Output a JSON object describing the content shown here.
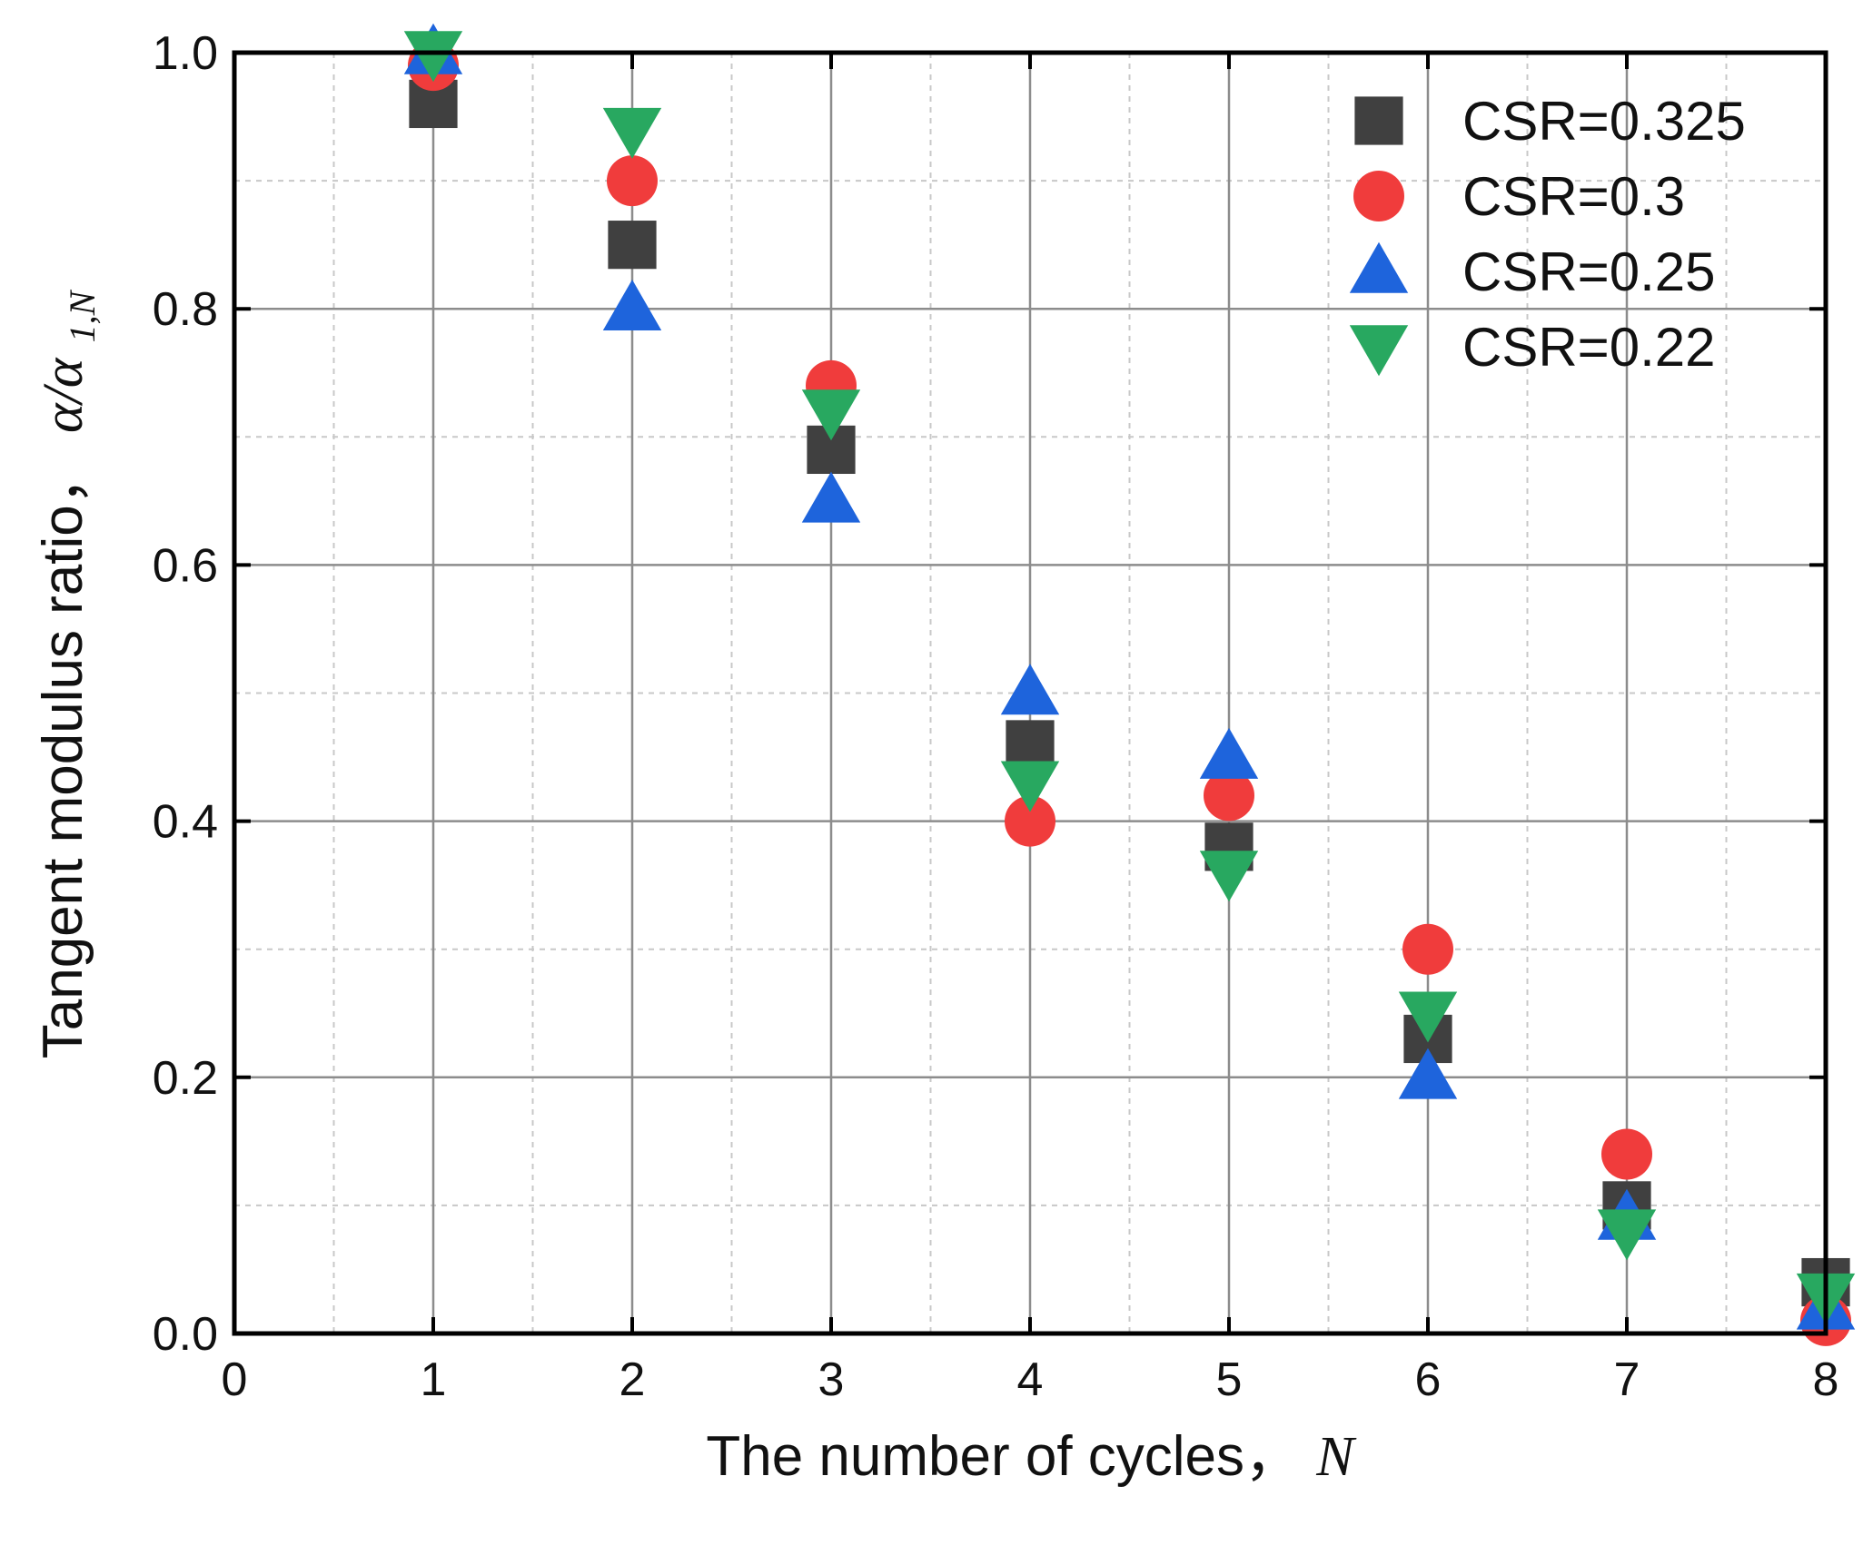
{
  "chart_data": {
    "type": "scatter",
    "title": "",
    "xlabel": "The number of cycles，",
    "xlabel_var": "N",
    "ylabel": "Tangent modulus ratio，",
    "ylabel_expr": "α/α",
    "ylabel_sub": "1,N",
    "xlim": [
      0,
      8
    ],
    "ylim": [
      0,
      1.0
    ],
    "xticks": [
      "0",
      "1",
      "2",
      "3",
      "4",
      "5",
      "6",
      "7",
      "8"
    ],
    "yticks": [
      "0.0",
      "0.2",
      "0.4",
      "0.6",
      "0.8",
      "1.0"
    ],
    "grid": true,
    "legend_position": "top-right",
    "x": [
      1,
      2,
      3,
      4,
      5,
      6,
      7,
      8
    ],
    "series": [
      {
        "name": "CSR=0.325",
        "marker": "square",
        "color": "#404040",
        "values": [
          0.96,
          0.85,
          0.69,
          0.46,
          0.38,
          0.23,
          0.1,
          0.04
        ]
      },
      {
        "name": "CSR=0.3",
        "marker": "circle",
        "color": "#f03c3c",
        "values": [
          0.99,
          0.9,
          0.74,
          0.4,
          0.42,
          0.3,
          0.14,
          0.01
        ]
      },
      {
        "name": "CSR=0.25",
        "marker": "triangle-up",
        "color": "#1e64dc",
        "values": [
          1.0,
          0.8,
          0.65,
          0.5,
          0.45,
          0.2,
          0.09,
          0.02
        ]
      },
      {
        "name": "CSR=0.22",
        "marker": "triangle-down",
        "color": "#28a860",
        "values": [
          1.0,
          0.94,
          0.72,
          0.43,
          0.36,
          0.25,
          0.08,
          0.03
        ]
      }
    ]
  }
}
